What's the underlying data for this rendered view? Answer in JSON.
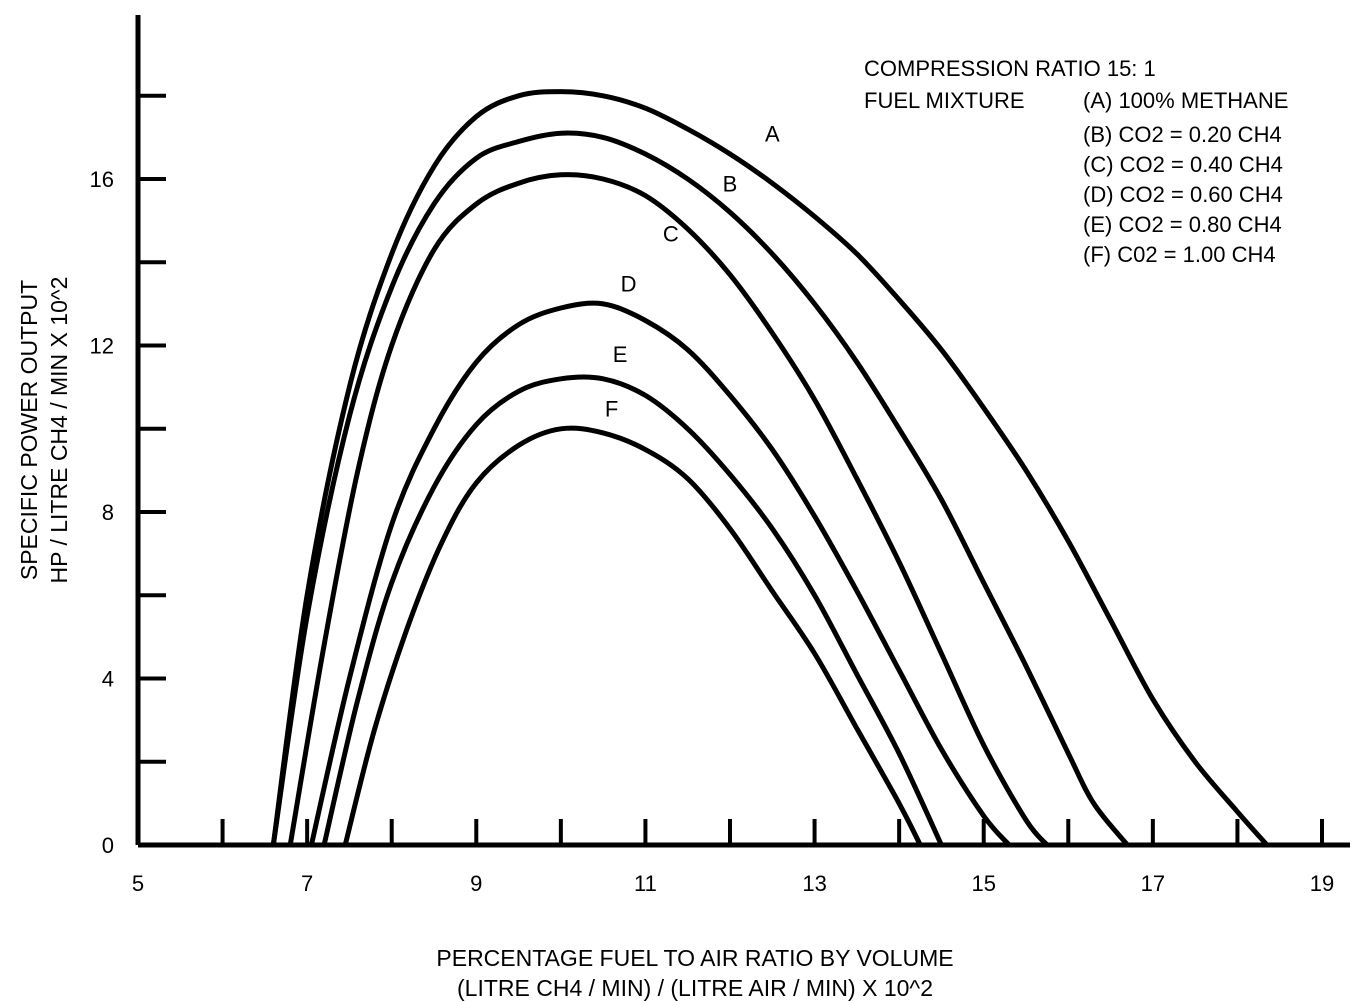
{
  "chart_data": {
    "type": "line",
    "xlabel_line1": "PERCENTAGE FUEL TO AIR RATIO BY VOLUME",
    "xlabel_line2": "(LITRE CH4 / MIN) / (LITRE AIR / MIN) X 10^2",
    "ylabel_line1": "SPECIFIC POWER OUTPUT",
    "ylabel_line2": "HP / LITRE CH4 / MIN X 10^2",
    "xlim": [
      5,
      19
    ],
    "ylim": [
      0,
      18
    ],
    "x_tick_labels": [
      "5",
      "7",
      "9",
      "11",
      "13",
      "15",
      "17",
      "19"
    ],
    "y_tick_labels": [
      "0",
      "4",
      "8",
      "12",
      "16"
    ],
    "legend_title_1": "COMPRESSION RATIO 15: 1",
    "legend_title_2": "FUEL MIXTURE",
    "legend": [
      "(A) 100% METHANE",
      "(B) CO2 = 0.20 CH4",
      "(C) CO2 = 0.40 CH4",
      "(D) CO2 = 0.60 CH4",
      "(E) CO2 = 0.80 CH4",
      "(F) C02 = 1.00 CH4"
    ],
    "series": [
      {
        "name": "A",
        "x": [
          6.6,
          7.0,
          7.5,
          8.0,
          8.5,
          9.0,
          9.5,
          10.0,
          10.5,
          11.0,
          11.5,
          12.0,
          12.5,
          13.0,
          13.5,
          14.0,
          14.5,
          15.0,
          15.5,
          16.0,
          16.5,
          17.0,
          17.5,
          18.0,
          18.35
        ],
        "y": [
          0,
          6.0,
          11.0,
          14.2,
          16.3,
          17.5,
          18.0,
          18.1,
          18.0,
          17.7,
          17.2,
          16.6,
          15.9,
          15.1,
          14.2,
          13.1,
          11.9,
          10.5,
          9.0,
          7.3,
          5.4,
          3.5,
          2.0,
          0.8,
          0
        ]
      },
      {
        "name": "B",
        "x": [
          6.6,
          7.0,
          7.5,
          8.0,
          8.5,
          9.0,
          9.5,
          10.0,
          10.5,
          11.0,
          11.5,
          12.0,
          12.5,
          13.0,
          13.5,
          14.0,
          14.5,
          15.0,
          15.5,
          16.0,
          16.3,
          16.7
        ],
        "y": [
          0,
          5.5,
          10.3,
          13.4,
          15.4,
          16.5,
          16.9,
          17.1,
          17.0,
          16.6,
          16.0,
          15.2,
          14.2,
          13.0,
          11.6,
          10.0,
          8.3,
          6.3,
          4.3,
          2.2,
          1.0,
          0
        ]
      },
      {
        "name": "C",
        "x": [
          6.8,
          7.2,
          7.6,
          8.0,
          8.5,
          9.0,
          9.5,
          10.0,
          10.5,
          11.0,
          11.5,
          12.0,
          12.5,
          13.0,
          13.5,
          14.0,
          14.5,
          15.0,
          15.5,
          15.75
        ],
        "y": [
          0,
          4.8,
          9.0,
          12.0,
          14.3,
          15.4,
          15.9,
          16.1,
          16.0,
          15.6,
          14.8,
          13.7,
          12.3,
          10.7,
          8.8,
          6.8,
          4.6,
          2.4,
          0.6,
          0
        ]
      },
      {
        "name": "D",
        "x": [
          7.05,
          7.5,
          8.0,
          8.5,
          9.0,
          9.5,
          10.0,
          10.5,
          11.0,
          11.5,
          12.0,
          12.5,
          13.0,
          13.5,
          14.0,
          14.5,
          15.0,
          15.3
        ],
        "y": [
          0,
          4.0,
          7.7,
          10.0,
          11.6,
          12.5,
          12.9,
          13.0,
          12.6,
          11.9,
          10.8,
          9.5,
          7.9,
          6.1,
          4.2,
          2.3,
          0.7,
          0
        ]
      },
      {
        "name": "E",
        "x": [
          7.2,
          7.6,
          8.0,
          8.5,
          9.0,
          9.5,
          10.0,
          10.5,
          11.0,
          11.5,
          12.0,
          12.5,
          13.0,
          13.5,
          14.0,
          14.5
        ],
        "y": [
          0,
          3.5,
          6.3,
          8.6,
          10.1,
          10.9,
          11.2,
          11.2,
          10.8,
          10.0,
          8.9,
          7.6,
          6.0,
          4.1,
          2.2,
          0
        ]
      },
      {
        "name": "F",
        "x": [
          7.45,
          7.8,
          8.2,
          8.6,
          9.0,
          9.5,
          10.0,
          10.5,
          11.0,
          11.5,
          12.0,
          12.5,
          13.0,
          13.5,
          14.0,
          14.25
        ],
        "y": [
          0,
          2.8,
          5.3,
          7.3,
          8.7,
          9.6,
          10.0,
          9.9,
          9.5,
          8.8,
          7.6,
          6.1,
          4.6,
          2.8,
          1.0,
          0
        ]
      }
    ],
    "curve_label_positions": [
      {
        "name": "A",
        "x": 12.5,
        "y": 16.9
      },
      {
        "name": "B",
        "x": 12.0,
        "y": 15.7
      },
      {
        "name": "C",
        "x": 11.3,
        "y": 14.5
      },
      {
        "name": "D",
        "x": 10.8,
        "y": 13.3
      },
      {
        "name": "E",
        "x": 10.7,
        "y": 11.6
      },
      {
        "name": "F",
        "x": 10.6,
        "y": 10.3
      }
    ],
    "grid": false
  }
}
